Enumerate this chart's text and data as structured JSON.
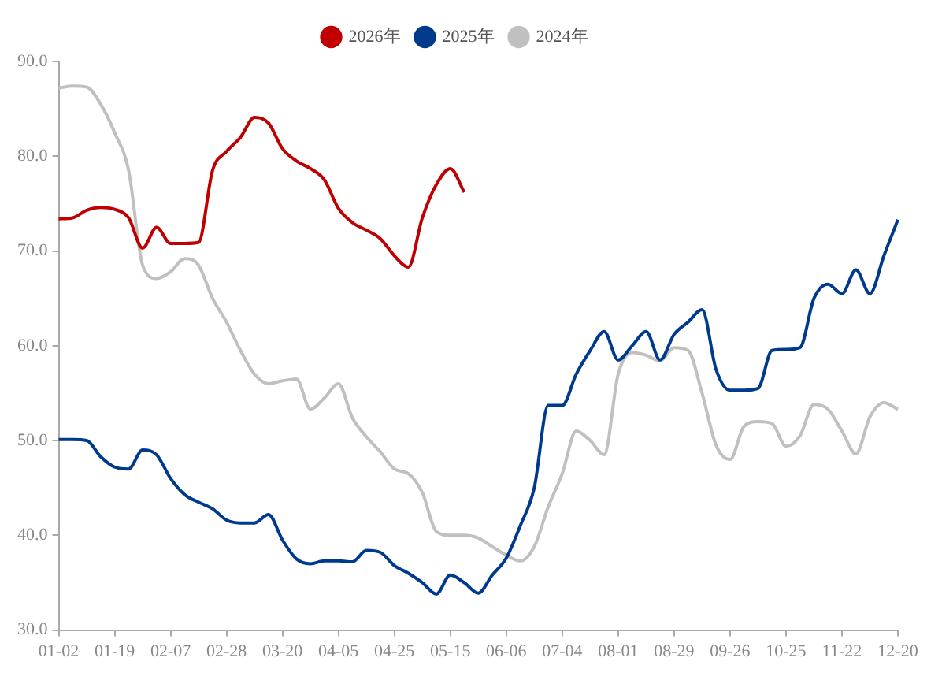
{
  "chart_data": {
    "type": "line",
    "categories": [
      "01-02",
      null,
      null,
      null,
      "01-19",
      null,
      null,
      null,
      "02-07",
      null,
      null,
      null,
      "02-28",
      null,
      null,
      null,
      "03-20",
      null,
      null,
      null,
      "04-05",
      null,
      null,
      null,
      "04-25",
      null,
      null,
      null,
      "05-15",
      null,
      null,
      null,
      "06-06",
      null,
      null,
      null,
      "07-04",
      null,
      null,
      null,
      "08-01",
      null,
      null,
      null,
      "08-29",
      null,
      null,
      null,
      "09-26",
      null,
      null,
      null,
      "10-25",
      null,
      null,
      null,
      "11-22",
      null,
      null,
      null,
      "12-20"
    ],
    "series": [
      {
        "name": "2026年",
        "color": "#c00000",
        "values": [
          73.4,
          73.5,
          74.3,
          74.6,
          74.4,
          73.5,
          70.3,
          72.5,
          70.8,
          70.8,
          70.9,
          78.5,
          80.5,
          82,
          84.1,
          83.5,
          80.8,
          79.5,
          78.7,
          77.5,
          74.5,
          73,
          72.2,
          71.3,
          69.5,
          68.3,
          73.5,
          77,
          78.7,
          76.2,
          null,
          null,
          null,
          null,
          null,
          null,
          null,
          null,
          null,
          null,
          null,
          null,
          null,
          null,
          null,
          null,
          null,
          null,
          null,
          null,
          null,
          null,
          null,
          null,
          null,
          null,
          null,
          null,
          null,
          null,
          null
        ]
      },
      {
        "name": "2025年",
        "color": "#003a8c",
        "values": [
          50.1,
          50.1,
          50,
          48.3,
          47.2,
          47,
          49,
          48.5,
          46,
          44.3,
          43.5,
          42.8,
          41.6,
          41.3,
          41.3,
          42.2,
          39.5,
          37.5,
          37,
          37.3,
          37.3,
          37.2,
          38.4,
          38.2,
          36.8,
          36,
          35,
          33.8,
          35.8,
          35,
          33.9,
          35.8,
          37.6,
          41,
          45,
          53.7,
          53.7,
          57,
          59.5,
          61.5,
          58.5,
          60,
          61.5,
          58.5,
          61.2,
          62.5,
          63.8,
          57.5,
          55.3,
          55.3,
          55.5,
          59.5,
          59.6,
          59.8,
          65,
          66.5,
          65.5,
          68,
          65.5,
          69.5,
          73.3
        ]
      },
      {
        "name": "2024年",
        "color": "#c0c0c0",
        "values": [
          87.2,
          87.4,
          87.3,
          85.5,
          82.5,
          78.5,
          68.5,
          67.1,
          67.8,
          69.2,
          68.5,
          65,
          62.5,
          59.5,
          57,
          56,
          56.3,
          56.5,
          53.3,
          54.5,
          56,
          52.4,
          50.4,
          48.8,
          47,
          46.5,
          44.5,
          40.4,
          40,
          40,
          39.7,
          38.8,
          37.9,
          37.3,
          38.8,
          43,
          46.5,
          51,
          50,
          48.5,
          57,
          59.3,
          59,
          58.4,
          59.8,
          59.5,
          55,
          49.5,
          48,
          51.5,
          52,
          51.8,
          49.4,
          50.5,
          53.8,
          53.3,
          51,
          48.6,
          52.5,
          54,
          53.3
        ]
      }
    ],
    "ylim": [
      30,
      90
    ],
    "yticks": [
      {
        "value": 30,
        "label": "30.0"
      },
      {
        "value": 40,
        "label": "40.0"
      },
      {
        "value": 50,
        "label": "50.0"
      },
      {
        "value": 60,
        "label": "60.0"
      },
      {
        "value": 70,
        "label": "70.0"
      },
      {
        "value": 80,
        "label": "80.0"
      },
      {
        "value": 90,
        "label": "90.0"
      }
    ],
    "grid": false,
    "legend": "top",
    "marker": "none",
    "line_style": "solid"
  }
}
